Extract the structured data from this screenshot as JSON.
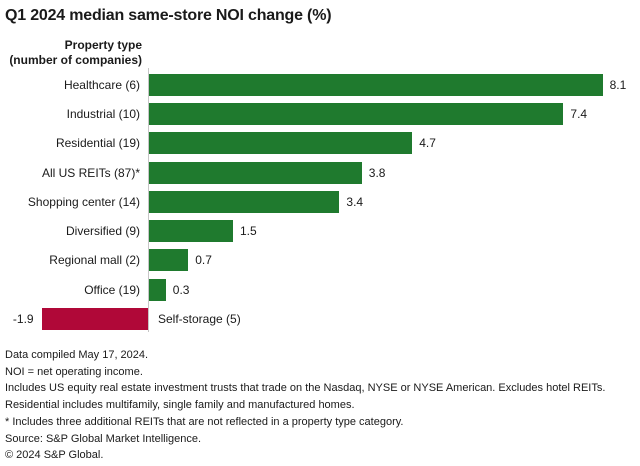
{
  "title": "Q1 2024 median same-store NOI change (%)",
  "colors": {
    "positive_bar": "#1f7a2e",
    "negative_bar": "#b00838",
    "axis_line": "#c6c6c6",
    "text": "#1a1a1a"
  },
  "chart_data": {
    "type": "bar",
    "orientation": "horizontal",
    "title": "Q1 2024 median same-store NOI change (%)",
    "axis_header": [
      "Property type",
      "(number of companies)"
    ],
    "categories": [
      "Healthcare (6)",
      "Industrial (10)",
      "Residential (19)",
      "All US REITs (87)*",
      "Shopping center (14)",
      "Diversified (9)",
      "Regional mall (2)",
      "Office (19)",
      "Self-storage (5)"
    ],
    "values": [
      8.1,
      7.4,
      4.7,
      3.8,
      3.4,
      1.5,
      0.7,
      0.3,
      -1.9
    ],
    "value_label_decimals": 1,
    "xlim": [
      -1.9,
      8.1
    ],
    "grid": false,
    "legend": false
  },
  "footer": {
    "lines": [
      "Data compiled May 17, 2024.",
      "NOI = net operating income.",
      "Includes US equity real estate investment trusts that trade on the Nasdaq, NYSE or NYSE American. Excludes hotel REITs.",
      "Residential includes multifamily, single family and manufactured homes.",
      "* Includes three additional REITs that are not reflected in a property type category.",
      "Source: S&P Global Market Intelligence.",
      "© 2024 S&P Global."
    ]
  }
}
